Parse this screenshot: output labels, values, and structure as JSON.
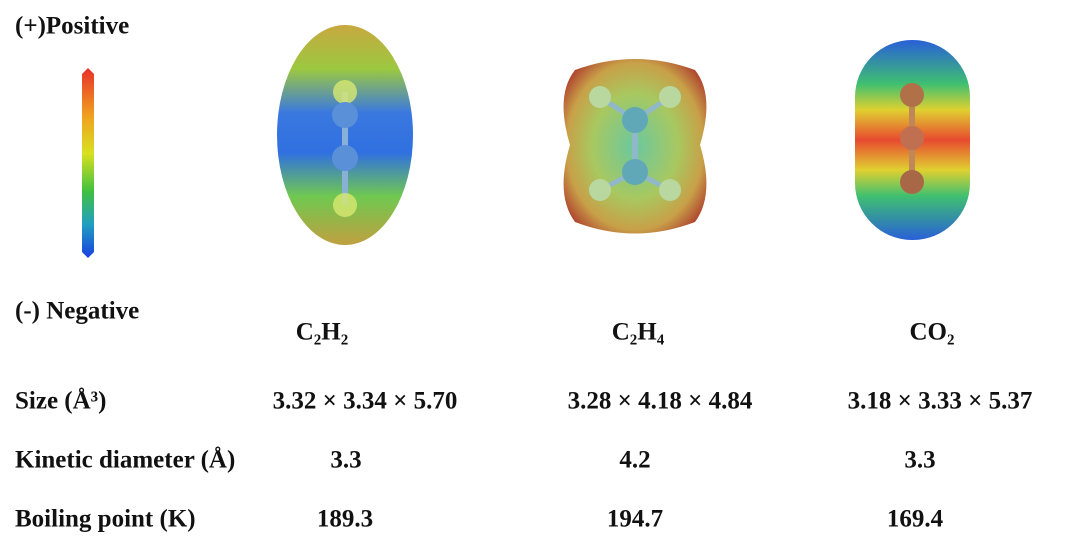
{
  "legend": {
    "top": "(+)Positive",
    "bottom": "(-) Negative"
  },
  "molecules": [
    "C₂H₂",
    "C₂H₄",
    "CO₂"
  ],
  "table": {
    "rows": [
      {
        "label": "Size (Å³)",
        "values": [
          "3.32 × 3.34 × 5.70",
          "3.28 × 4.18 × 4.84",
          "3.18 × 3.33 × 5.37"
        ]
      },
      {
        "label": "Kinetic diameter (Å)",
        "values": [
          3.3,
          4.2,
          3.3
        ]
      },
      {
        "label": "Boiling point (K)",
        "values": [
          189.3,
          194.7,
          169.4
        ]
      }
    ]
  }
}
